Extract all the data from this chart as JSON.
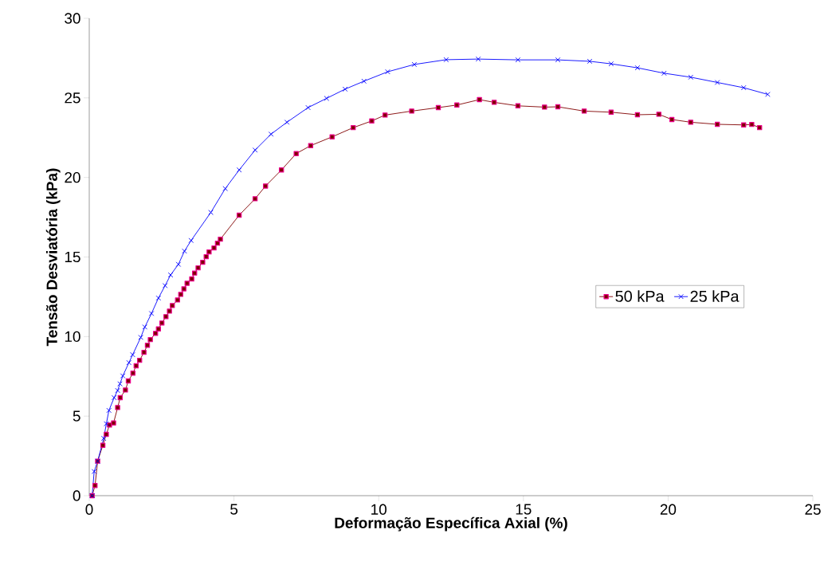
{
  "chart_data": {
    "type": "line",
    "xlabel": "Deformação Específica Axial (%)",
    "ylabel": "Tensão Desviatória (kPa)",
    "xlim": [
      0,
      25
    ],
    "ylim": [
      0,
      30
    ],
    "xticks": [
      0,
      5,
      10,
      15,
      20,
      25
    ],
    "yticks": [
      0,
      5,
      10,
      15,
      20,
      25,
      30
    ],
    "grid": false,
    "legend": "right",
    "line_style": "solid",
    "series": [
      {
        "name": "50 kPa",
        "color": "#800000",
        "marker": "square",
        "x": [
          0.1,
          0.2,
          0.29,
          0.47,
          0.59,
          0.7,
          0.84,
          0.98,
          1.07,
          1.25,
          1.35,
          1.51,
          1.62,
          1.74,
          1.89,
          2.01,
          2.11,
          2.29,
          2.39,
          2.51,
          2.65,
          2.77,
          2.87,
          3.05,
          3.16,
          3.27,
          3.38,
          3.54,
          3.64,
          3.76,
          3.92,
          4.04,
          4.14,
          4.31,
          4.43,
          4.53,
          5.18,
          5.73,
          6.09,
          6.64,
          7.15,
          7.65,
          8.39,
          9.12,
          9.76,
          10.22,
          11.14,
          12.06,
          12.7,
          13.48,
          13.99,
          14.81,
          15.73,
          16.19,
          17.1,
          18.03,
          18.94,
          19.68,
          20.13,
          20.78,
          21.7,
          22.61,
          22.89,
          23.16
        ],
        "values": [
          0,
          0.64,
          2.17,
          3.17,
          3.86,
          4.44,
          4.57,
          5.54,
          6.16,
          6.64,
          7.21,
          7.7,
          8.16,
          8.51,
          9.01,
          9.45,
          9.81,
          10.2,
          10.48,
          10.85,
          11.25,
          11.6,
          11.95,
          12.3,
          12.65,
          13.0,
          13.35,
          13.62,
          13.99,
          14.32,
          14.67,
          15.02,
          15.32,
          15.57,
          15.87,
          16.12,
          17.63,
          18.66,
          19.46,
          20.47,
          21.5,
          22.0,
          22.55,
          23.13,
          23.55,
          23.92,
          24.17,
          24.39,
          24.55,
          24.89,
          24.72,
          24.5,
          24.42,
          24.44,
          24.17,
          24.1,
          23.94,
          23.97,
          23.64,
          23.47,
          23.34,
          23.3,
          23.33,
          23.13
        ]
      },
      {
        "name": "25 kPa",
        "color": "#0000ff",
        "marker": "cross",
        "x": [
          0.1,
          0.17,
          0.29,
          0.5,
          0.59,
          0.68,
          0.86,
          0.98,
          1.06,
          1.16,
          1.37,
          1.5,
          1.78,
          1.92,
          2.15,
          2.39,
          2.62,
          2.81,
          3.08,
          3.29,
          3.52,
          4.2,
          4.7,
          5.18,
          5.73,
          6.28,
          6.83,
          7.56,
          8.2,
          8.84,
          9.49,
          10.31,
          11.23,
          12.33,
          13.44,
          14.81,
          16.19,
          17.29,
          18.03,
          18.94,
          19.86,
          20.78,
          21.7,
          22.61,
          23.44
        ],
        "values": [
          0,
          1.52,
          2.17,
          3.6,
          4.52,
          5.36,
          6.16,
          6.61,
          7.03,
          7.53,
          8.36,
          8.86,
          9.95,
          10.6,
          11.45,
          12.42,
          13.2,
          13.87,
          14.54,
          15.37,
          16.04,
          17.8,
          19.3,
          20.47,
          21.72,
          22.72,
          23.47,
          24.39,
          24.97,
          25.55,
          26.05,
          26.64,
          27.1,
          27.4,
          27.44,
          27.39,
          27.39,
          27.3,
          27.14,
          26.89,
          26.55,
          26.3,
          25.97,
          25.64,
          25.22
        ]
      }
    ]
  }
}
